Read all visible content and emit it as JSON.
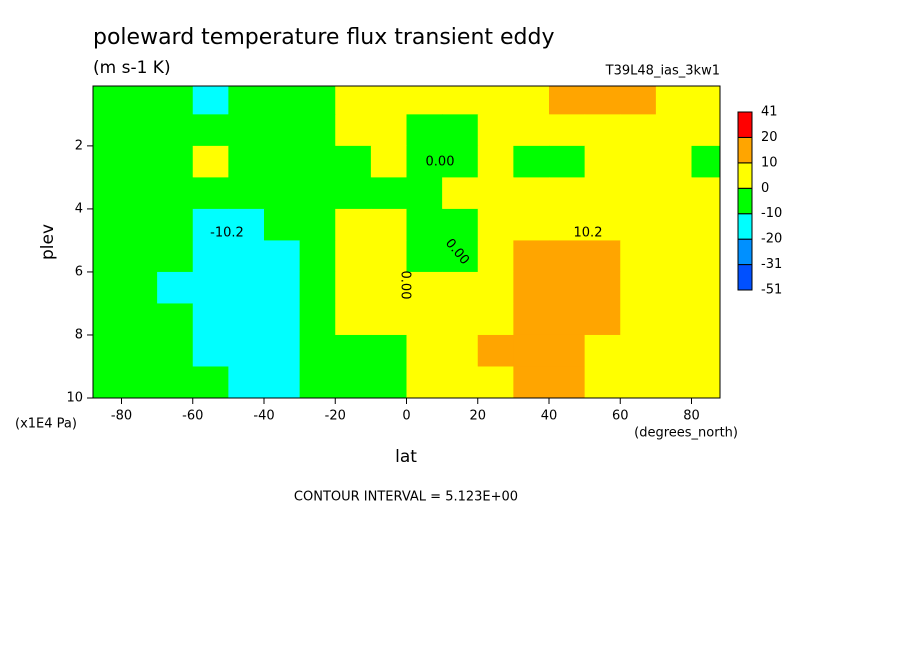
{
  "chart_data": {
    "type": "contour",
    "title": "poleward temperature flux transient eddy",
    "subtitle": "(m s-1 K)",
    "run_label": "T39L48_ias_3kw1",
    "x_label": "lat",
    "x_units": "(degrees_north)",
    "y_label": "plev",
    "y_units": "(x1E4 Pa)",
    "footer": "CONTOUR INTERVAL = 5.123E+00",
    "xlim": [
      -88,
      88
    ],
    "xticks": [
      -80,
      -60,
      -40,
      -20,
      0,
      20,
      40,
      60,
      80
    ],
    "ylim": [
      10,
      0.1
    ],
    "yticks": [
      2,
      4,
      6,
      8,
      10
    ],
    "x": [
      -85,
      -75,
      -65,
      -55,
      -45,
      -35,
      -25,
      -15,
      -5,
      5,
      15,
      25,
      35,
      45,
      55,
      65,
      75,
      85
    ],
    "y": [
      0.5,
      1.5,
      2.5,
      3.5,
      4.5,
      5.5,
      6.5,
      7.5,
      8.5,
      9.5
    ],
    "z": [
      [
        -3,
        -3,
        -3,
        -12,
        -3,
        -3,
        -3,
        3,
        3,
        3,
        3,
        2,
        3,
        15,
        15,
        12,
        5,
        3
      ],
      [
        -3,
        -3,
        -3,
        -3,
        -3,
        -3,
        -3,
        3,
        3,
        -3,
        -3,
        3,
        3,
        5,
        5,
        4,
        3,
        3
      ],
      [
        -3,
        -3,
        -2,
        3,
        -2,
        -3,
        -3,
        -2,
        2,
        -1,
        -2,
        3,
        -2,
        -2,
        3,
        3,
        3,
        -2
      ],
      [
        -4,
        -5,
        -6,
        -6,
        -6,
        -5,
        -4,
        -3,
        -1,
        -2,
        3,
        3,
        4,
        5,
        5,
        4,
        3,
        3
      ],
      [
        -5,
        -7,
        -9,
        -11,
        -11,
        -9,
        -6,
        2,
        2,
        -3,
        -1,
        4,
        7,
        9,
        8,
        5,
        3,
        2
      ],
      [
        -6,
        -8,
        -10,
        -13,
        -14,
        -12,
        -8,
        3,
        2,
        -3,
        -1,
        5,
        11,
        13,
        12,
        7,
        4,
        3
      ],
      [
        -6,
        -8,
        -11,
        -14,
        -16,
        -14,
        -8,
        3,
        3,
        2,
        3,
        7,
        13,
        16,
        13,
        8,
        5,
        3
      ],
      [
        -6,
        -8,
        -10,
        -14,
        -16,
        -15,
        -9,
        2,
        2,
        3,
        4,
        9,
        14,
        17,
        12,
        7,
        5,
        3
      ],
      [
        -5,
        -7,
        -9,
        -12,
        -15,
        -14,
        -9,
        -3,
        -2,
        3,
        5,
        10,
        13,
        14,
        9,
        6,
        4,
        3
      ],
      [
        -4,
        -6,
        -8,
        -9,
        -12,
        -11,
        -8,
        -4,
        -2,
        3,
        5,
        8,
        11,
        11,
        8,
        5,
        4,
        3
      ]
    ],
    "levels": [
      -51,
      -31,
      -20,
      -10,
      0,
      10,
      20,
      41
    ],
    "colors": [
      "#0050ff",
      "#0090ff",
      "#00ffff",
      "#00ff00",
      "#ffff00",
      "#ffa500",
      "#ff0000"
    ],
    "contour_labels": [
      "-10.2",
      "0.00",
      "0.00",
      "0.00",
      "10.2"
    ]
  }
}
